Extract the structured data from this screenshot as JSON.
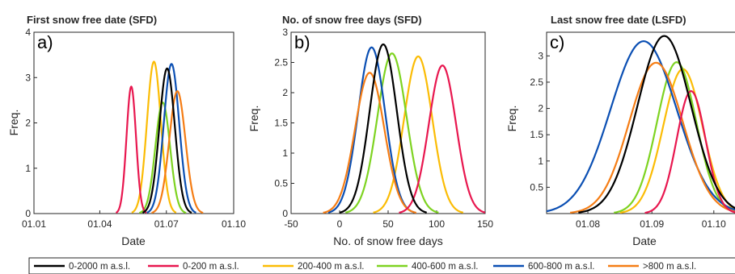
{
  "series_colors": [
    "#000000",
    "#e8174f",
    "#fbbc05",
    "#7ed321",
    "#0b4fb3",
    "#f57d15"
  ],
  "legend": [
    "0-2000 m a.s.l.",
    "0-200 m a.s.l.",
    "200-400 m a.s.l.",
    "400-600 m a.s.l.",
    "600-800 m a.s.l.",
    ">800 m a.s.l."
  ],
  "chart_data": [
    {
      "type": "line",
      "panel_letter": "a)",
      "title": "First snow free date (SFD)",
      "xlabel": "Date",
      "ylabel": "Freq.",
      "x_ticks": [
        "01.01",
        "01.04",
        "01.07",
        "01.10"
      ],
      "y_ticks": [
        "0",
        "1",
        "2",
        "3",
        "4"
      ],
      "xlim": [
        0,
        273
      ],
      "ylim": [
        0,
        4
      ],
      "grid": false,
      "series": [
        {
          "mean": 182,
          "sd": 10.5,
          "peak": 3.2
        },
        {
          "mean": 133,
          "sd": 6.5,
          "peak": 2.8
        },
        {
          "mean": 164,
          "sd": 9.5,
          "peak": 3.35
        },
        {
          "mean": 176,
          "sd": 10,
          "peak": 2.45
        },
        {
          "mean": 188,
          "sd": 10.5,
          "peak": 3.3
        },
        {
          "mean": 196,
          "sd": 11,
          "peak": 2.7
        }
      ]
    },
    {
      "type": "line",
      "panel_letter": "b)",
      "title": "No. of snow free days (SFD)",
      "xlabel": "No. of snow free days",
      "ylabel": "Freq.",
      "x_ticks": [
        "-50",
        "0",
        "50",
        "100",
        "150"
      ],
      "y_ticks": [
        "0",
        "0.5",
        "1",
        "1.5",
        "2",
        "2.5",
        "3"
      ],
      "xlim": [
        -50,
        150
      ],
      "ylim": [
        0,
        3
      ],
      "grid": false,
      "series": [
        {
          "mean": 45,
          "sd": 14,
          "peak": 2.8
        },
        {
          "mean": 106,
          "sd": 14,
          "peak": 2.45
        },
        {
          "mean": 81,
          "sd": 14.5,
          "peak": 2.6
        },
        {
          "mean": 54,
          "sd": 15,
          "peak": 2.65
        },
        {
          "mean": 33,
          "sd": 14,
          "peak": 2.75
        },
        {
          "mean": 31,
          "sd": 15,
          "peak": 2.33
        }
      ]
    },
    {
      "type": "line",
      "panel_letter": "c)",
      "title": "Last snow free date (LSFD)",
      "xlabel": "Date",
      "ylabel": "Freq.",
      "x_ticks": [
        "01.08",
        "01.09",
        "01.10"
      ],
      "x_tick_values": [
        213,
        244,
        274
      ],
      "y_ticks": [
        "0.5",
        "1",
        "1.5",
        "2",
        "2.5",
        "3"
      ],
      "xlim": [
        193,
        287
      ],
      "ylim": [
        0,
        3.45
      ],
      "grid": false,
      "series": [
        {
          "mean": 250,
          "sd": 13,
          "peak": 3.38
        },
        {
          "mean": 263,
          "sd": 7,
          "peak": 2.33
        },
        {
          "mean": 259,
          "sd": 9.5,
          "peak": 2.75
        },
        {
          "mean": 256,
          "sd": 9.5,
          "peak": 2.88
        },
        {
          "mean": 240,
          "sd": 16,
          "peak": 3.28
        },
        {
          "mean": 246,
          "sd": 13,
          "peak": 2.87
        }
      ]
    }
  ]
}
